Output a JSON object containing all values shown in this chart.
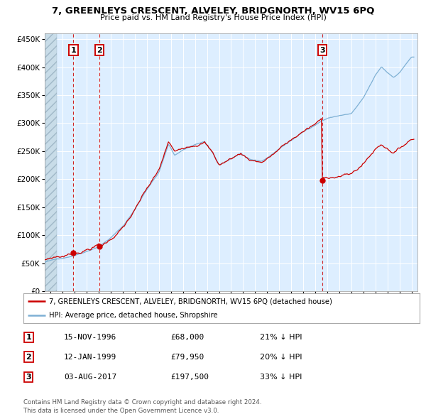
{
  "title1": "7, GREENLEYS CRESCENT, ALVELEY, BRIDGNORTH, WV15 6PQ",
  "title2": "Price paid vs. HM Land Registry's House Price Index (HPI)",
  "legend_line1": "7, GREENLEYS CRESCENT, ALVELEY, BRIDGNORTH, WV15 6PQ (detached house)",
  "legend_line2": "HPI: Average price, detached house, Shropshire",
  "transactions": [
    {
      "num": 1,
      "date": "15-NOV-1996",
      "price": 68000,
      "year": 1996.875
    },
    {
      "num": 2,
      "date": "12-JAN-1999",
      "price": 79950,
      "year": 1999.042
    },
    {
      "num": 3,
      "date": "03-AUG-2017",
      "price": 197500,
      "year": 2017.583
    }
  ],
  "table_rows": [
    [
      "1",
      "15-NOV-1996",
      "£68,000",
      "21% ↓ HPI"
    ],
    [
      "2",
      "12-JAN-1999",
      "£79,950",
      "20% ↓ HPI"
    ],
    [
      "3",
      "03-AUG-2017",
      "£197,500",
      "33% ↓ HPI"
    ]
  ],
  "footer": "Contains HM Land Registry data © Crown copyright and database right 2024.\nThis data is licensed under the Open Government Licence v3.0.",
  "red_color": "#cc0000",
  "blue_color": "#7eb0d4",
  "bg_color": "#ddeeff",
  "hatch_color": "#c8d8e8",
  "grid_color": "white",
  "ylim": [
    0,
    460000
  ],
  "yticks": [
    0,
    50000,
    100000,
    150000,
    200000,
    250000,
    300000,
    350000,
    400000,
    450000
  ],
  "xlim": [
    1994.5,
    2025.5
  ],
  "hatch_end": 1995.5
}
